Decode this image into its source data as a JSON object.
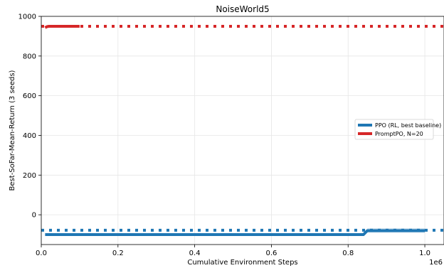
{
  "chart_data": {
    "type": "line",
    "title": "NoiseWorld5",
    "xlabel": "Cumulative Environment Steps",
    "ylabel": "Best-SoFar-Mean-Return (3 seeds)",
    "x_offset_label": "1e6",
    "xlim": [
      0,
      1.05
    ],
    "ylim": [
      -150,
      1000
    ],
    "xticks": [
      0,
      0.2,
      0.4,
      0.6,
      0.8,
      1.0
    ],
    "xtick_labels": [
      "0.0",
      "0.2",
      "0.4",
      "0.6",
      "0.8",
      "1.0"
    ],
    "yticks": [
      0,
      200,
      400,
      600,
      800,
      1000
    ],
    "ytick_labels": [
      "0",
      "200",
      "400",
      "600",
      "800",
      "1000"
    ],
    "grid": true,
    "legend_position": "center-right",
    "series": [
      {
        "name": "PPO (RL, best baseline)",
        "color": "#1f77b4",
        "style": "solid",
        "x": [
          0.01,
          0.84,
          0.85,
          1.0
        ],
        "y": [
          -100,
          -100,
          -80,
          -80
        ],
        "band": {
          "x": [
            0.85,
            1.0
          ],
          "lower": [
            -90,
            -90
          ],
          "upper": [
            -68,
            -68
          ]
        }
      },
      {
        "name": "PromptPO, N=20",
        "color": "#d62728",
        "style": "solid",
        "x": [
          0.01,
          0.015,
          0.02,
          0.1
        ],
        "y": [
          943,
          948,
          950,
          950
        ]
      }
    ],
    "reference_lines": [
      {
        "color": "#1f77b4",
        "style": "dotted",
        "y": -78
      },
      {
        "color": "#d62728",
        "style": "dotted",
        "y": 950
      }
    ]
  }
}
